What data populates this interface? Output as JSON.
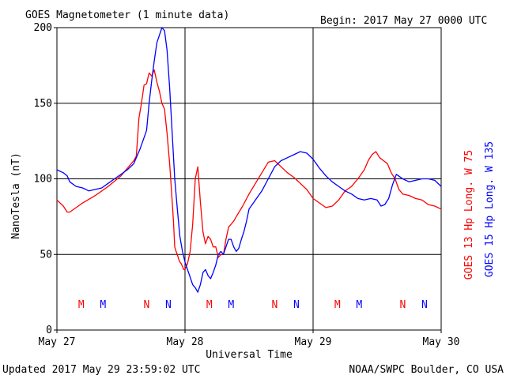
{
  "header": {
    "title": "GOES Magnetometer (1 minute data)",
    "begin": "Begin:  2017 May 27 0000 UTC"
  },
  "footer": {
    "updated": "Updated 2017 May 29 23:59:02 UTC",
    "credit": "NOAA/SWPC Boulder, CO USA"
  },
  "colors": {
    "goes13": "#ff0000",
    "goes15": "#0000ff",
    "grid": "#000000",
    "background": "#ffffff"
  },
  "chart_data": {
    "type": "line",
    "title": "GOES Magnetometer (1 minute data)",
    "xlabel": "Universal Time",
    "ylabel": "NanoTesla (nT)",
    "x_unit": "days since 2017 May 27 0000 UTC",
    "xlim": [
      0,
      3
    ],
    "ylim": [
      0,
      200
    ],
    "x_ticks": [
      {
        "value": 0,
        "label": "May 27"
      },
      {
        "value": 1,
        "label": "May 28"
      },
      {
        "value": 2,
        "label": "May 29"
      },
      {
        "value": 3,
        "label": "May 30"
      }
    ],
    "y_ticks": [
      0,
      50,
      100,
      150,
      200
    ],
    "grid": true,
    "legend_placement": "right (vertical)",
    "markers": [
      {
        "label": "M",
        "x": 0.19,
        "series": "goes13"
      },
      {
        "label": "M",
        "x": 0.36,
        "series": "goes15"
      },
      {
        "label": "N",
        "x": 0.7,
        "series": "goes13"
      },
      {
        "label": "N",
        "x": 0.87,
        "series": "goes15"
      },
      {
        "label": "M",
        "x": 1.19,
        "series": "goes13"
      },
      {
        "label": "M",
        "x": 1.36,
        "series": "goes15"
      },
      {
        "label": "N",
        "x": 1.7,
        "series": "goes13"
      },
      {
        "label": "N",
        "x": 1.87,
        "series": "goes15"
      },
      {
        "label": "M",
        "x": 2.19,
        "series": "goes13"
      },
      {
        "label": "M",
        "x": 2.36,
        "series": "goes15"
      },
      {
        "label": "N",
        "x": 2.7,
        "series": "goes13"
      },
      {
        "label": "N",
        "x": 2.87,
        "series": "goes15"
      }
    ],
    "series": [
      {
        "name": "GOES 13 Hp  Long. W 75",
        "key": "goes13",
        "color": "#ff0000",
        "x": [
          0,
          0.05,
          0.08,
          0.1,
          0.15,
          0.2,
          0.3,
          0.4,
          0.5,
          0.6,
          0.62,
          0.64,
          0.66,
          0.68,
          0.7,
          0.72,
          0.74,
          0.76,
          0.78,
          0.8,
          0.82,
          0.84,
          0.86,
          0.88,
          0.9,
          0.91,
          0.92,
          0.93,
          0.94,
          0.95,
          0.96,
          0.97,
          0.98,
          0.99,
          1.0,
          1.02,
          1.04,
          1.06,
          1.08,
          1.1,
          1.12,
          1.14,
          1.16,
          1.18,
          1.2,
          1.22,
          1.24,
          1.26,
          1.28,
          1.3,
          1.32,
          1.34,
          1.36,
          1.38,
          1.4,
          1.45,
          1.5,
          1.55,
          1.6,
          1.65,
          1.7,
          1.75,
          1.8,
          1.85,
          1.9,
          1.95,
          2.0,
          2.05,
          2.1,
          2.15,
          2.2,
          2.25,
          2.3,
          2.35,
          2.4,
          2.43,
          2.46,
          2.49,
          2.52,
          2.55,
          2.58,
          2.61,
          2.64,
          2.67,
          2.7,
          2.75,
          2.8,
          2.85,
          2.9,
          2.95,
          3.0
        ],
        "values": [
          86,
          82,
          78,
          78,
          81,
          84,
          89,
          95,
          102,
          112,
          115,
          140,
          150,
          162,
          163,
          170,
          168,
          172,
          164,
          158,
          150,
          146,
          130,
          110,
          85,
          72,
          55,
          52,
          50,
          47,
          45,
          44,
          42,
          40,
          40,
          44,
          52,
          70,
          100,
          108,
          85,
          65,
          57,
          62,
          60,
          55,
          55,
          48,
          50,
          50,
          60,
          68,
          70,
          72,
          75,
          82,
          90,
          97,
          104,
          111,
          112,
          108,
          104,
          101,
          97,
          93,
          87,
          84,
          81,
          82,
          86,
          92,
          95,
          100,
          106,
          112,
          116,
          118,
          114,
          112,
          110,
          104,
          100,
          93,
          90,
          89,
          87,
          86,
          83,
          82,
          80
        ]
      },
      {
        "name": "GOES 15 Hp  Long. W 135",
        "key": "goes15",
        "color": "#0000ff",
        "x": [
          0,
          0.05,
          0.08,
          0.1,
          0.15,
          0.2,
          0.25,
          0.3,
          0.35,
          0.4,
          0.45,
          0.5,
          0.55,
          0.6,
          0.65,
          0.7,
          0.72,
          0.74,
          0.76,
          0.78,
          0.8,
          0.82,
          0.84,
          0.86,
          0.88,
          0.9,
          0.92,
          0.94,
          0.96,
          0.98,
          1.0,
          1.02,
          1.04,
          1.06,
          1.08,
          1.1,
          1.12,
          1.14,
          1.16,
          1.18,
          1.2,
          1.22,
          1.24,
          1.26,
          1.28,
          1.3,
          1.32,
          1.34,
          1.36,
          1.38,
          1.4,
          1.42,
          1.44,
          1.46,
          1.48,
          1.5,
          1.55,
          1.6,
          1.65,
          1.7,
          1.75,
          1.8,
          1.85,
          1.9,
          1.95,
          2.0,
          2.05,
          2.1,
          2.15,
          2.2,
          2.25,
          2.3,
          2.35,
          2.4,
          2.45,
          2.5,
          2.53,
          2.56,
          2.59,
          2.62,
          2.65,
          2.7,
          2.75,
          2.8,
          2.85,
          2.9,
          2.95,
          3.0
        ],
        "values": [
          106,
          104,
          102,
          98,
          95,
          94,
          92,
          93,
          94,
          97,
          100,
          103,
          106,
          110,
          120,
          132,
          150,
          165,
          178,
          190,
          195,
          200,
          198,
          185,
          160,
          130,
          100,
          80,
          62,
          52,
          45,
          40,
          35,
          30,
          28,
          25,
          30,
          38,
          40,
          36,
          34,
          38,
          43,
          50,
          52,
          50,
          55,
          60,
          60,
          55,
          52,
          54,
          60,
          65,
          72,
          80,
          86,
          92,
          100,
          108,
          112,
          114,
          116,
          118,
          117,
          113,
          107,
          102,
          98,
          95,
          92,
          90,
          87,
          86,
          87,
          86,
          82,
          83,
          87,
          96,
          103,
          100,
          98,
          99,
          100,
          100,
          99,
          95
        ]
      }
    ]
  }
}
